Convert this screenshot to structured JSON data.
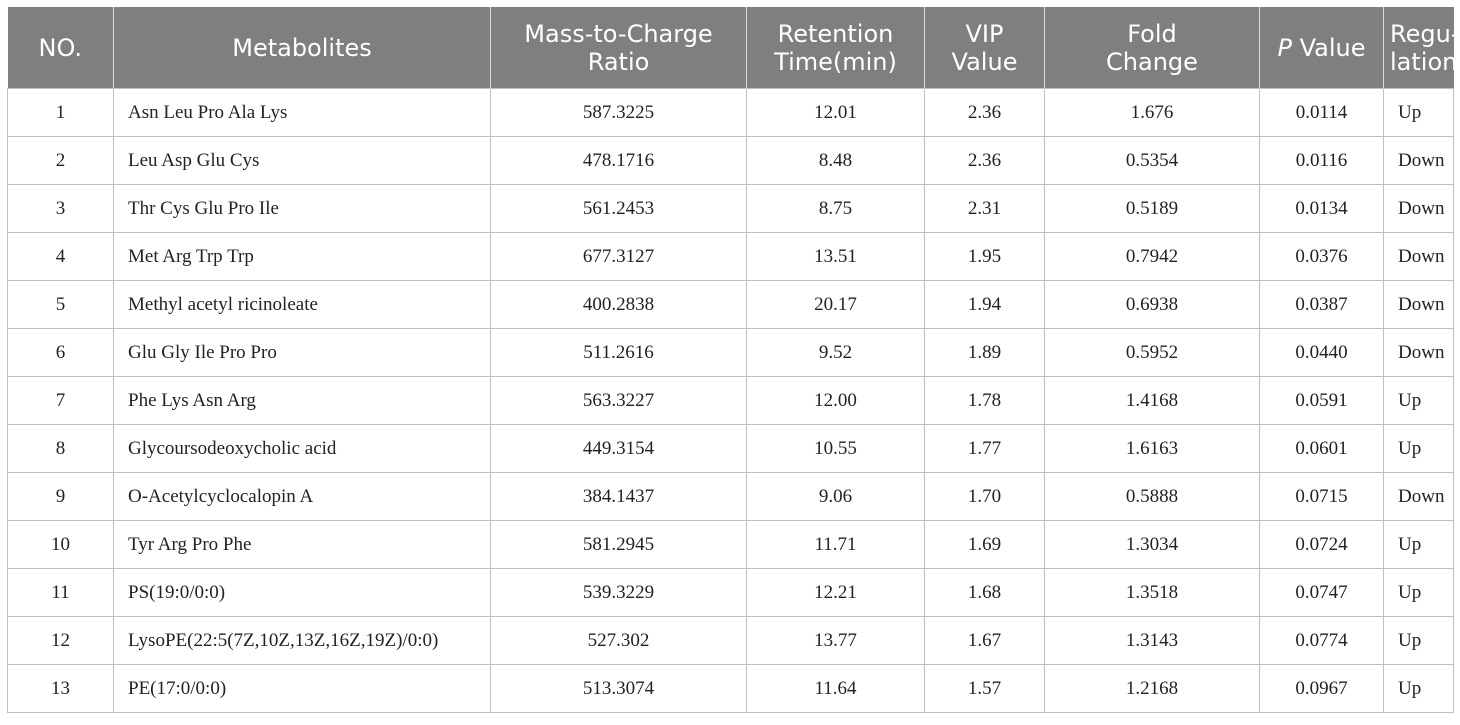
{
  "table": {
    "headers": [
      {
        "lines": [
          "NO."
        ]
      },
      {
        "lines": [
          "Metabolites"
        ]
      },
      {
        "lines": [
          "Mass-to-Charge",
          "Ratio"
        ]
      },
      {
        "lines": [
          "Retention",
          "Time(min)"
        ]
      },
      {
        "lines": [
          "VIP",
          "Value"
        ]
      },
      {
        "lines": [
          "Fold",
          "Change"
        ]
      },
      {
        "italic": "P",
        "rest": " Value"
      },
      {
        "lines": [
          "Regu-",
          "lation"
        ]
      }
    ],
    "rows": [
      [
        "1",
        "Asn Leu Pro Ala Lys",
        "587.3225",
        "12.01",
        "2.36",
        "1.676",
        "0.0114",
        "Up"
      ],
      [
        "2",
        "Leu Asp Glu Cys",
        "478.1716",
        "8.48",
        "2.36",
        "0.5354",
        "0.0116",
        "Down"
      ],
      [
        "3",
        "Thr Cys Glu Pro Ile",
        "561.2453",
        "8.75",
        "2.31",
        "0.5189",
        "0.0134",
        "Down"
      ],
      [
        "4",
        "Met Arg Trp Trp",
        "677.3127",
        "13.51",
        "1.95",
        "0.7942",
        "0.0376",
        "Down"
      ],
      [
        "5",
        "Methyl acetyl ricinoleate",
        "400.2838",
        "20.17",
        "1.94",
        "0.6938",
        "0.0387",
        "Down"
      ],
      [
        "6",
        "Glu Gly Ile Pro Pro",
        "511.2616",
        "9.52",
        "1.89",
        "0.5952",
        "0.0440",
        "Down"
      ],
      [
        "7",
        "Phe Lys Asn Arg",
        "563.3227",
        "12.00",
        "1.78",
        "1.4168",
        "0.0591",
        "Up"
      ],
      [
        "8",
        "Glycoursodeoxycholic acid",
        "449.3154",
        "10.55",
        "1.77",
        "1.6163",
        "0.0601",
        "Up"
      ],
      [
        "9",
        "O-Acetylcyclocalopin A",
        "384.1437",
        "9.06",
        "1.70",
        "0.5888",
        "0.0715",
        "Down"
      ],
      [
        "10",
        "Tyr Arg Pro Phe",
        "581.2945",
        "11.71",
        "1.69",
        "1.3034",
        "0.0724",
        "Up"
      ],
      [
        "11",
        "PS(19:0/0:0)",
        "539.3229",
        "12.21",
        "1.68",
        "1.3518",
        "0.0747",
        "Up"
      ],
      [
        "12",
        "LysoPE(22:5(7Z,10Z,13Z,16Z,19Z)/0:0)",
        "527.302",
        "13.77",
        "1.67",
        "1.3143",
        "0.0774",
        "Up"
      ],
      [
        "13",
        "PE(17:0/0:0)",
        "513.3074",
        "11.64",
        "1.57",
        "1.2168",
        "0.0967",
        "Up"
      ]
    ]
  },
  "colors": {
    "header_bg": "#7f7f7f",
    "header_text": "#ffffff",
    "grid": "#bfbfbf"
  }
}
